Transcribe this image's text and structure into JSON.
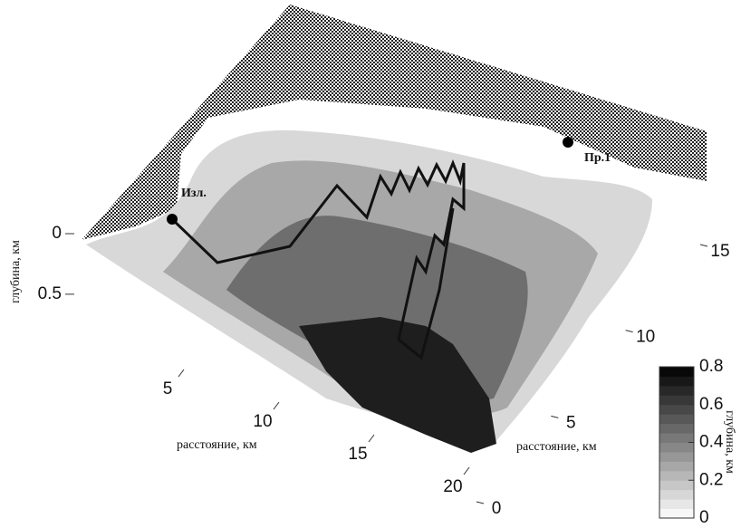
{
  "chart_data": {
    "type": "surface3d",
    "xlabel": "расстояние, км",
    "xticks": [
      5,
      10,
      15,
      20
    ],
    "xlim": [
      0,
      20
    ],
    "ylabel": "расстояние, км",
    "yticks": [
      0,
      5,
      10,
      15
    ],
    "ylim": [
      0,
      15
    ],
    "zlabel": "глубина, км",
    "zticks": [
      0,
      0.5
    ],
    "zlim": [
      0,
      0.8
    ],
    "colorbar": {
      "label": "глубина, км",
      "ticks": [
        0,
        0.2,
        0.4,
        0.6,
        0.8
      ],
      "clim": [
        0,
        0.8
      ],
      "colors": [
        "#ffffff",
        "#000000"
      ]
    },
    "annotations": [
      "Изл.",
      "Пр.1"
    ]
  }
}
